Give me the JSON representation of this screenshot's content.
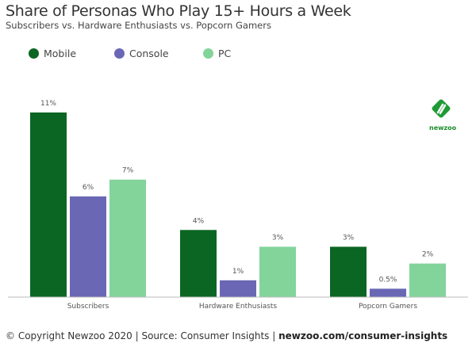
{
  "chart_data": {
    "type": "bar",
    "title": "Share of Personas Who Play 15+ Hours a Week",
    "subtitle": "Subscribers vs. Hardware Enthusiasts vs. Popcorn Gamers",
    "categories": [
      "Subscribers",
      "Hardware Enthusiasts",
      "Popcorn Gamers"
    ],
    "series": [
      {
        "name": "Mobile",
        "color": "#0b6623",
        "values": [
          11,
          4,
          3
        ],
        "labels": [
          "11%",
          "4%",
          "3%"
        ]
      },
      {
        "name": "Console",
        "color": "#6a67b5",
        "values": [
          6,
          1,
          0.5
        ],
        "labels": [
          "6%",
          "1%",
          "0.5%"
        ]
      },
      {
        "name": "PC",
        "color": "#82d49a",
        "values": [
          7,
          3,
          2
        ],
        "labels": [
          "7%",
          "3%",
          "2%"
        ]
      }
    ],
    "ylim": [
      0,
      11
    ],
    "xlabel": "",
    "ylabel": "",
    "grid": false,
    "legend_placement": "top-left"
  },
  "logo": {
    "text": "newzoo"
  },
  "footer": {
    "text": "© Copyright Newzoo 2020 | Source: Consumer Insights | ",
    "link": "newzoo.com/consumer-insights"
  }
}
